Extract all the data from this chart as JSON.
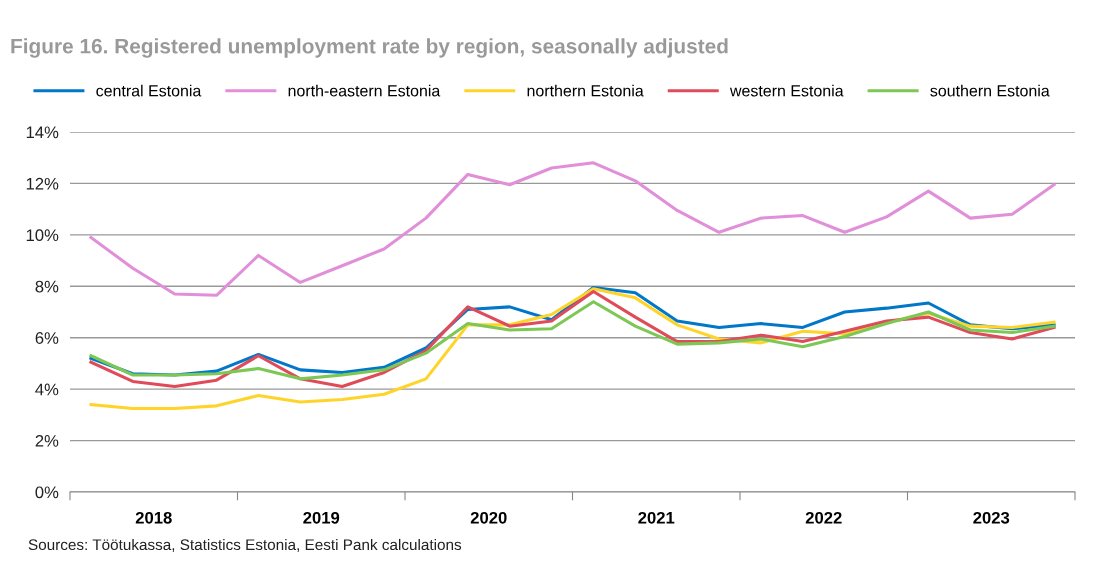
{
  "chart_data": {
    "type": "line",
    "title": "Figure 16. Registered unemployment rate by region, seasonally adjusted",
    "x": [
      2018.125,
      2018.375,
      2018.625,
      2018.875,
      2019.125,
      2019.375,
      2019.625,
      2019.875,
      2020.125,
      2020.375,
      2020.625,
      2020.875,
      2021.125,
      2021.375,
      2021.625,
      2021.875,
      2022.125,
      2022.375,
      2022.625,
      2022.875,
      2023.125,
      2023.375,
      2023.625,
      2023.875
    ],
    "series": [
      {
        "name": "central Estonia",
        "color": "#0077c8",
        "values": [
          5.2,
          4.6,
          4.55,
          4.7,
          5.35,
          4.75,
          4.65,
          4.85,
          5.6,
          7.1,
          7.2,
          6.7,
          7.95,
          7.75,
          6.65,
          6.4,
          6.55,
          6.4,
          7.0,
          7.15,
          7.35,
          6.5,
          6.35,
          6.5
        ]
      },
      {
        "name": "north-eastern Estonia",
        "color": "#e08fd8",
        "values": [
          9.9,
          8.7,
          7.7,
          7.65,
          9.2,
          8.15,
          8.8,
          9.45,
          10.65,
          12.35,
          11.95,
          12.6,
          12.8,
          12.1,
          10.95,
          10.1,
          10.65,
          10.75,
          10.1,
          10.7,
          11.7,
          10.65,
          10.8,
          11.95
        ]
      },
      {
        "name": "northern Estonia",
        "color": "#ffd42a",
        "values": [
          3.4,
          3.25,
          3.25,
          3.35,
          3.75,
          3.5,
          3.6,
          3.8,
          4.4,
          6.5,
          6.5,
          6.9,
          7.9,
          7.55,
          6.5,
          5.95,
          5.8,
          6.25,
          6.15,
          6.6,
          6.95,
          6.45,
          6.4,
          6.6
        ]
      },
      {
        "name": "western Estonia",
        "color": "#e04b5a",
        "values": [
          5.05,
          4.3,
          4.1,
          4.35,
          5.3,
          4.4,
          4.1,
          4.65,
          5.5,
          7.2,
          6.45,
          6.65,
          7.8,
          6.8,
          5.85,
          5.85,
          6.1,
          5.85,
          6.25,
          6.65,
          6.8,
          6.2,
          5.95,
          6.4
        ]
      },
      {
        "name": "southern Estonia",
        "color": "#7dc855",
        "values": [
          5.3,
          4.55,
          4.55,
          4.6,
          4.8,
          4.4,
          4.55,
          4.75,
          5.4,
          6.55,
          6.3,
          6.35,
          7.4,
          6.45,
          5.75,
          5.8,
          5.95,
          5.65,
          6.05,
          6.55,
          7.0,
          6.3,
          6.2,
          6.45
        ]
      }
    ],
    "xlim": [
      2018,
      2024
    ],
    "xticks": [
      {
        "value": 2018,
        "label": null
      },
      {
        "value": 2018.5,
        "label": "2018"
      },
      {
        "value": 2019,
        "label": null
      },
      {
        "value": 2019.5,
        "label": "2019"
      },
      {
        "value": 2020,
        "label": null
      },
      {
        "value": 2020.5,
        "label": "2020"
      },
      {
        "value": 2021,
        "label": null
      },
      {
        "value": 2021.5,
        "label": "2021"
      },
      {
        "value": 2022,
        "label": null
      },
      {
        "value": 2022.5,
        "label": "2022"
      },
      {
        "value": 2023,
        "label": null
      },
      {
        "value": 2023.5,
        "label": "2023"
      },
      {
        "value": 2024,
        "label": null
      }
    ],
    "ylim": [
      0,
      14
    ],
    "yticks": [
      {
        "value": 0,
        "label": "0%"
      },
      {
        "value": 2,
        "label": "2%"
      },
      {
        "value": 4,
        "label": "4%"
      },
      {
        "value": 6,
        "label": "6%"
      },
      {
        "value": 8,
        "label": "8%"
      },
      {
        "value": 10,
        "label": "10%"
      },
      {
        "value": 12,
        "label": "12%"
      },
      {
        "value": 14,
        "label": "14%"
      }
    ],
    "grid": "y",
    "legend": "top",
    "marker": "none",
    "line_style": "solid",
    "annotations": [
      "Sources: Töötukassa, Statistics Estonia, Eesti Pank calculations"
    ]
  }
}
